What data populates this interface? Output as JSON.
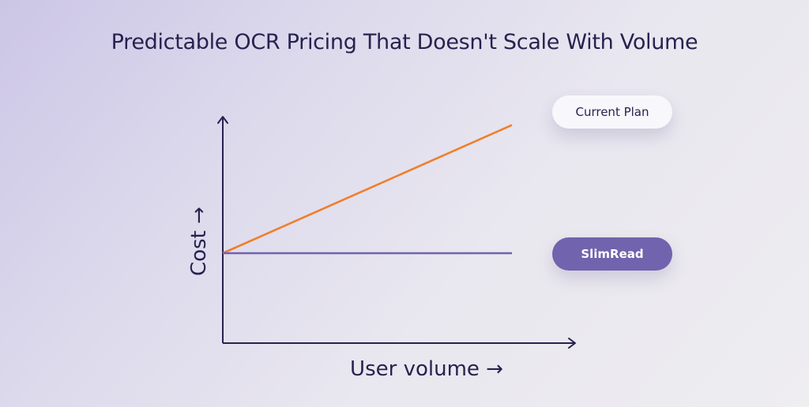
{
  "chart_data": {
    "type": "line",
    "title": "Predictable OCR Pricing That Doesn't Scale With Volume",
    "xlabel": "User volume →",
    "ylabel": "Cost →",
    "x": [
      0,
      1
    ],
    "xlim": [
      0,
      1.0
    ],
    "ylim": [
      0,
      1.0
    ],
    "grid": false,
    "series": [
      {
        "name": "Current Plan",
        "values": [
          0.4,
          0.97
        ],
        "color": "#f07e2a"
      },
      {
        "name": "SlimRead",
        "values": [
          0.4,
          0.4
        ],
        "color": "#7163ad"
      }
    ],
    "axis_color": "#27224f"
  }
}
